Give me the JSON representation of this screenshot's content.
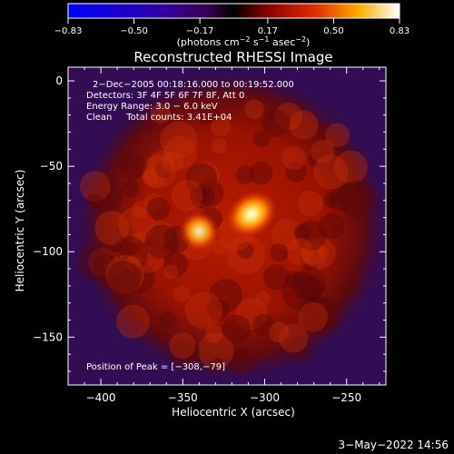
{
  "chart_data": {
    "type": "heatmap",
    "title": "Reconstructed RHESSI Image",
    "xlabel": "Heliocentric X (arcsec)",
    "ylabel": "Heliocentric Y (arcsec)",
    "xlim": [
      -420,
      -226
    ],
    "ylim": [
      -178,
      8
    ],
    "xticks": [
      -400,
      -350,
      -300,
      -250
    ],
    "yticks": [
      0,
      -50,
      -100,
      -150
    ],
    "xtick_labels": [
      "−400",
      "−350",
      "−300",
      "−250"
    ],
    "ytick_labels": [
      "0",
      "−50",
      "−100",
      "−150"
    ],
    "colorbar": {
      "range": [
        -0.83,
        0.83
      ],
      "ticks": [
        -0.83,
        -0.5,
        -0.17,
        0.17,
        0.5,
        0.83
      ],
      "tick_labels": [
        "−0.83",
        "−0.50",
        "−0.17",
        "0.17",
        "0.50",
        "0.83"
      ],
      "unit_main": "(photons cm",
      "unit_sup1": "−2",
      "unit_mid": " s",
      "unit_sup2": "−1",
      "unit_mid2": " asec",
      "unit_sup3": "−2",
      "unit_end": ")"
    },
    "annotations": [
      "2−Dec−2005 00:18:16.000 to 00:19:52.000",
      "Detectors: 3F 4F 5F 6F 7F 8F, Att 0",
      "Energy Range: 3.0 − 6.0 keV",
      "Clean     Total counts: 3.41E+04"
    ],
    "peak_label": "Position of Peak = [−308,−79]",
    "sources": [
      {
        "x": -308,
        "y": -78,
        "value": 0.83
      },
      {
        "x": -340,
        "y": -88,
        "value": 0.72
      }
    ],
    "disk_center": [
      -320,
      -85
    ],
    "disk_radius": 95
  },
  "footer": {
    "date": "3−May−2022 14:56"
  }
}
